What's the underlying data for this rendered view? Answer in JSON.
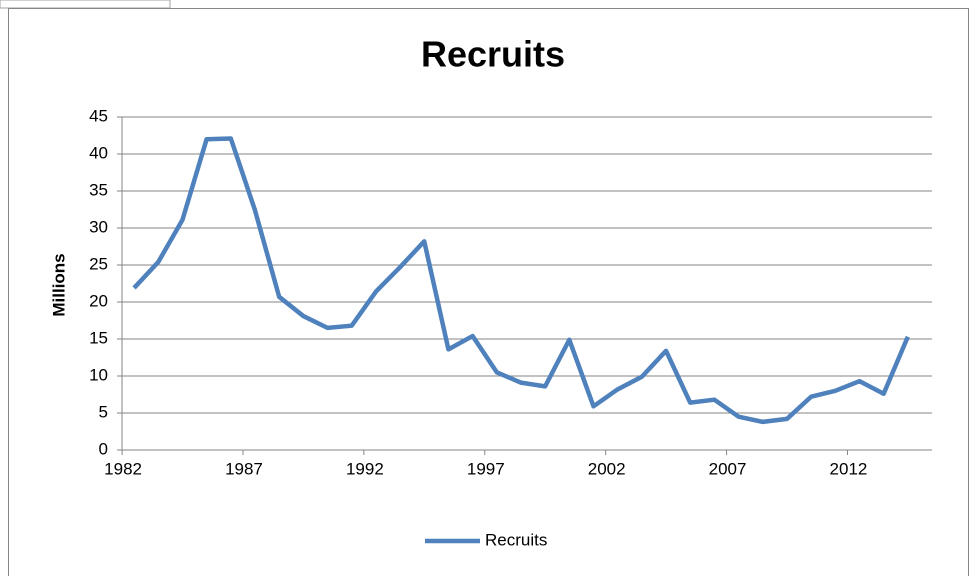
{
  "chart_data": {
    "type": "line",
    "title": "Recruits",
    "y_label": "Millions",
    "x": [
      1982,
      1983,
      1984,
      1985,
      1986,
      1987,
      1988,
      1989,
      1990,
      1991,
      1992,
      1993,
      1994,
      1995,
      1996,
      1997,
      1998,
      1999,
      2000,
      2001,
      2002,
      2003,
      2004,
      2005,
      2006,
      2007,
      2008,
      2009,
      2010,
      2011,
      2012,
      2013,
      2014
    ],
    "series": [
      {
        "name": "Recruits",
        "color": "#4f81bd",
        "values": [
          21.9,
          25.4,
          31.1,
          42.0,
          42.1,
          32.4,
          20.7,
          18.1,
          16.5,
          16.8,
          21.4,
          24.7,
          28.2,
          13.6,
          15.4,
          10.5,
          9.1,
          8.6,
          14.9,
          5.9,
          8.2,
          9.9,
          13.4,
          6.4,
          6.8,
          4.5,
          3.8,
          4.2,
          7.2,
          8.0,
          9.3,
          7.6,
          15.3
        ]
      }
    ],
    "xlim": [
      1981.5,
      2015
    ],
    "xticks": [
      1982,
      1987,
      1992,
      1997,
      2002,
      2007,
      2012
    ],
    "ylim": [
      0,
      45
    ],
    "yticks": [
      0,
      5,
      10,
      15,
      20,
      25,
      30,
      35,
      40,
      45
    ],
    "grid": true,
    "legend": "bottom"
  }
}
